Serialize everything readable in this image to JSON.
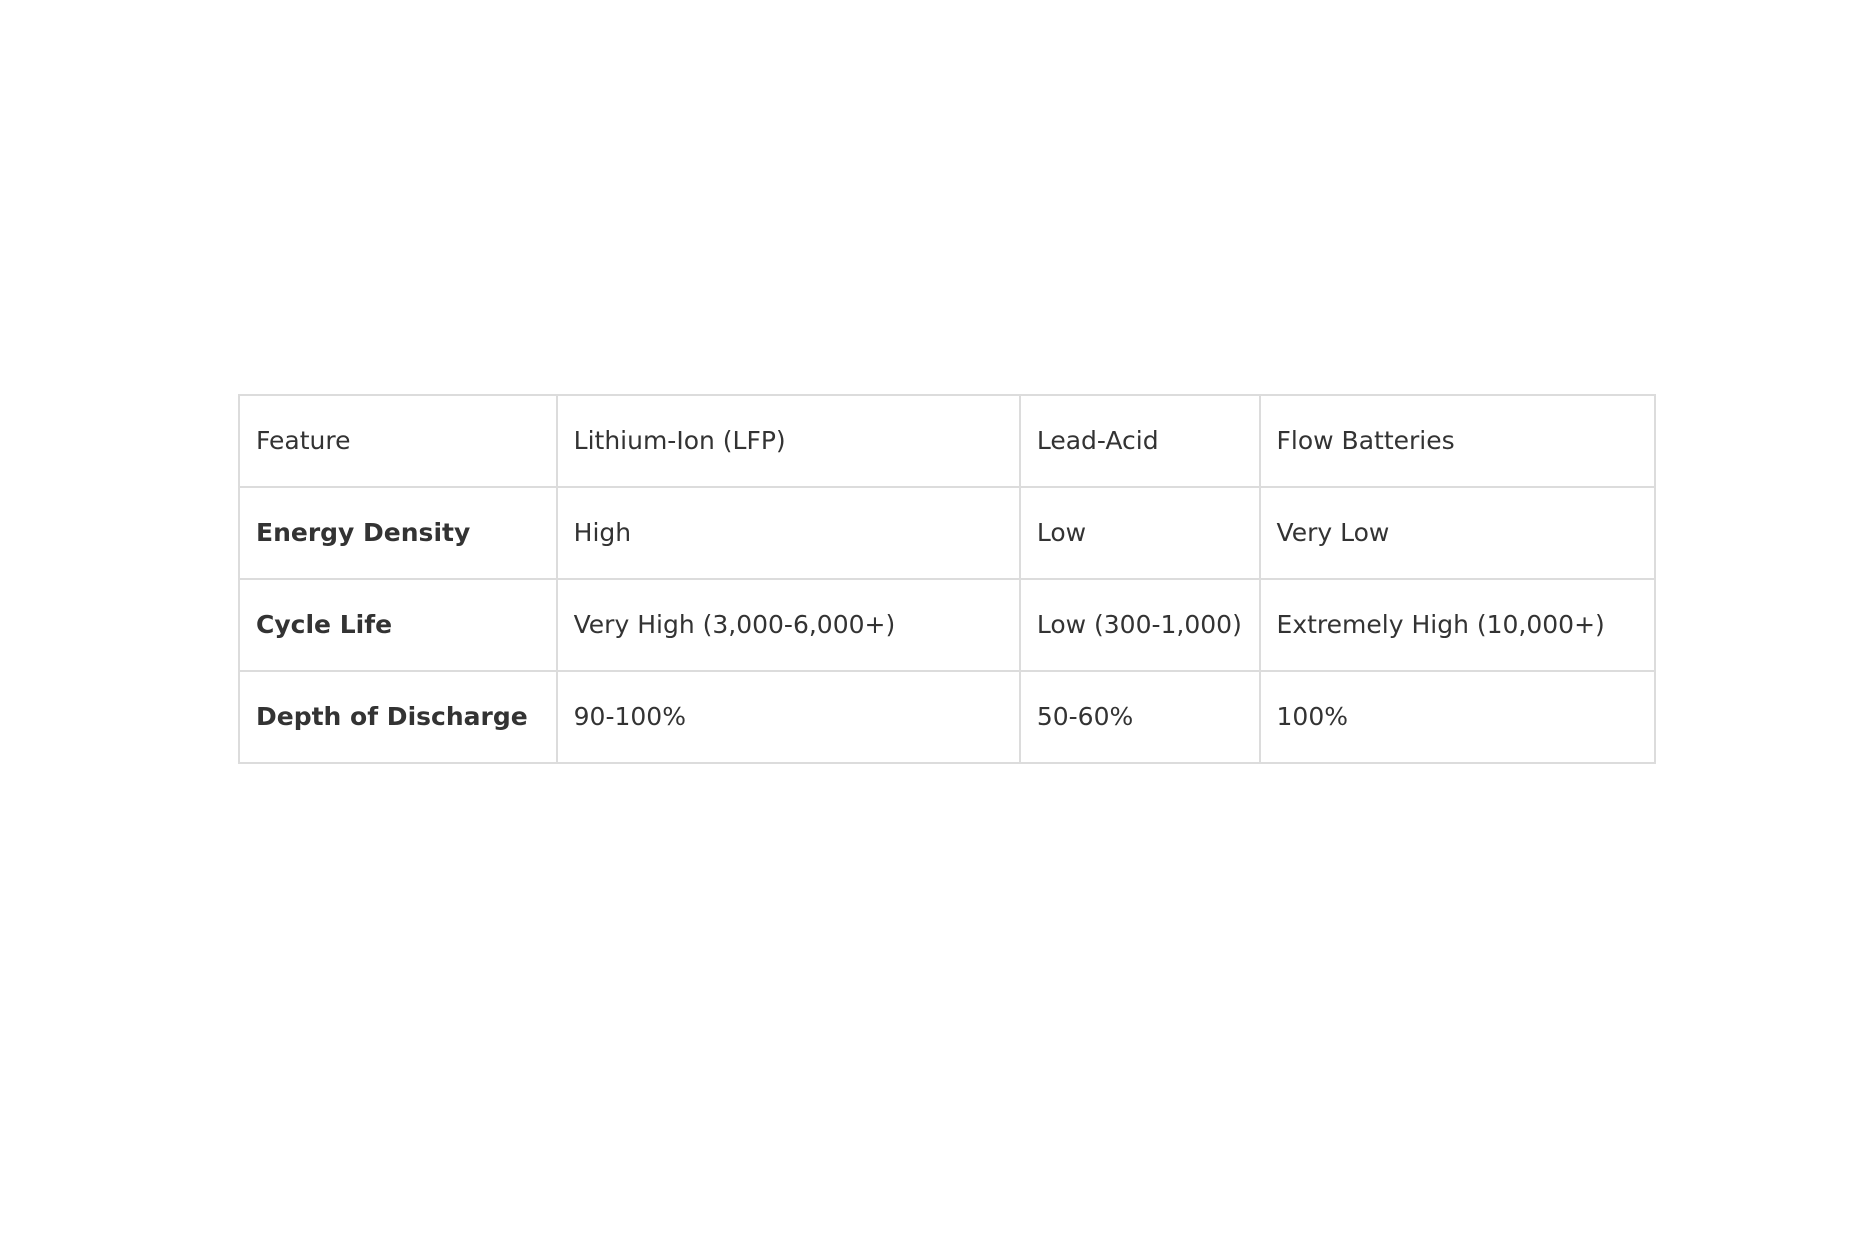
{
  "table": {
    "headers": [
      "Feature",
      "Lithium-Ion (LFP)",
      "Lead-Acid",
      "Flow Batteries"
    ],
    "rows": [
      [
        "Energy Density",
        "High",
        "Low",
        "Very Low"
      ],
      [
        "Cycle Life",
        "Very High (3,000-6,000+)",
        "Low (300-1,000)",
        "Extremely High (10,000+)"
      ],
      [
        "Depth of Discharge",
        "90-100%",
        "50-60%",
        "100%"
      ]
    ]
  }
}
